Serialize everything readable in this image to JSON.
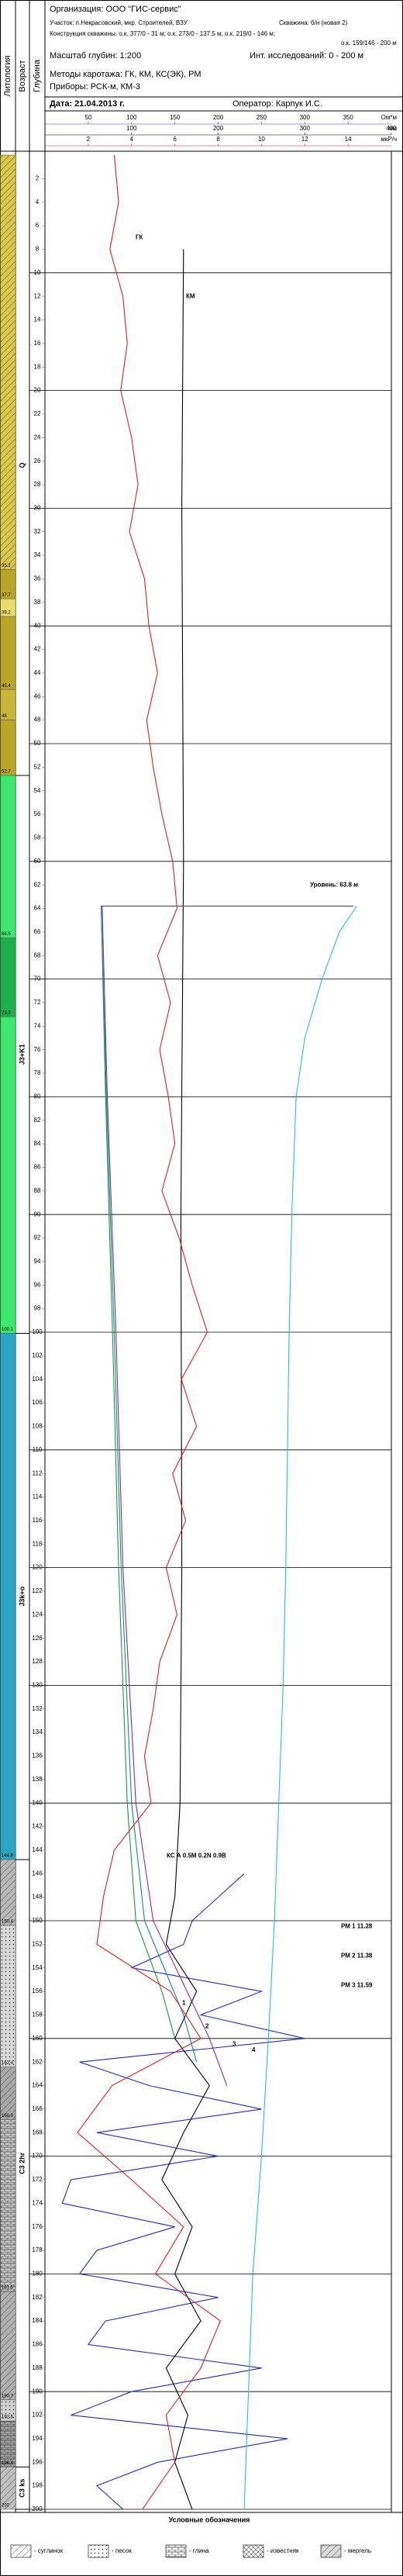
{
  "header": {
    "organization": "Организация: ООО \"ГИС-сервис\"",
    "area": "Участок: п.Некрасовский, мкр. Строителей, ВЗУ",
    "well": "Скважина: б/н (новая 2)",
    "construction": [
      "Конструкция скважины: о.к. 377/0 - 31 м; о.к. 273/0 - 137.5 м; о.к. 219/0 - 146 м;",
      "о.к. 159/146 - 200 м"
    ],
    "scale": "Масштаб глубин: 1:200",
    "interval": "Инт. исследований: 0 - 200 м",
    "methods": "Методы каротажа: ГК, КМ, КС(ЭК), РМ",
    "devices": "Приборы: РСК-м, КМ-3",
    "date": "Дата: 21.04.2013 г.",
    "operator": "Оператор: Карпук И.С.",
    "columns": [
      "Литология",
      "Возраст",
      "Глубина"
    ]
  },
  "chart_data": {
    "type": "well-log",
    "ylim": [
      0,
      200
    ],
    "yticks": [
      2,
      4,
      6,
      8,
      10,
      12,
      14,
      16,
      18,
      20,
      22,
      24,
      26,
      28,
      30,
      32,
      34,
      36,
      38,
      40,
      42,
      44,
      46,
      48,
      50,
      52,
      54,
      56,
      58,
      60,
      62,
      64,
      66,
      68,
      70,
      72,
      74,
      76,
      78,
      80,
      82,
      84,
      86,
      88,
      90,
      92,
      94,
      96,
      98,
      100,
      102,
      104,
      106,
      108,
      110,
      112,
      114,
      116,
      118,
      120,
      122,
      124,
      126,
      128,
      130,
      132,
      134,
      136,
      138,
      140,
      142,
      144,
      146,
      148,
      150,
      152,
      154,
      156,
      158,
      160,
      162,
      164,
      166,
      168,
      170,
      172,
      174,
      176,
      178,
      180,
      182,
      184,
      186,
      188,
      190,
      192,
      194,
      196,
      198,
      200
    ],
    "level_depth": 63.8,
    "scales": [
      {
        "color": "#2a3fd6",
        "unit": "Ом*м",
        "xlim": [
          0,
          400
        ],
        "ticks": [
          50,
          100,
          150,
          200,
          250,
          300,
          350
        ],
        "curves": [
          {
            "color": "#1f2bc0",
            "depth": [
              146,
              148,
              150,
              152,
              154,
              156,
              158,
              160,
              162,
              164,
              166,
              168,
              170,
              172,
              174,
              176,
              178,
              180,
              182,
              184,
              186,
              188,
              190,
              192,
              194,
              196,
              198,
              200
            ],
            "values": [
              230,
              200,
              170,
              160,
              100,
              250,
              180,
              300,
              40,
              120,
              250,
              60,
              200,
              30,
              20,
              150,
              60,
              40,
              200,
              70,
              50,
              250,
              100,
              30,
              280,
              130,
              60,
              90
            ]
          },
          {
            "color": "#22c0d8",
            "depth": [
              63.8,
              66,
              70,
              75,
              80,
              90,
              100,
              110,
              120,
              130,
              140,
              150,
              160,
              170,
              180,
              190,
              200
            ],
            "values": [
              360,
              340,
              320,
              300,
              290,
              285,
              282,
              280,
              278,
              275,
              270,
              265,
              258,
              250,
              240,
              235,
              230
            ]
          },
          {
            "color": "#1a9a3a",
            "depth": [
              63.8,
              80,
              100,
              120,
              140,
              150,
              156,
              160
            ],
            "values": [
              65,
              70,
              78,
              85,
              95,
              105,
              135,
              150
            ]
          },
          {
            "color": "#128c8c",
            "depth": [
              63.8,
              80,
              100,
              120,
              140,
              150,
              158,
              162
            ],
            "values": [
              65,
              71,
              80,
              88,
              100,
              115,
              160,
              175
            ]
          },
          {
            "color": "#8a2aa8",
            "depth": [
              63.8,
              80,
              100,
              120,
              140,
              150,
              160,
              164
            ],
            "values": [
              66,
              72,
              82,
              90,
              105,
              125,
              190,
              210
            ]
          }
        ]
      },
      {
        "color": "#000000",
        "unit": "мм",
        "xlim": [
          0,
          400
        ],
        "ticks": [
          100,
          200,
          300,
          400
        ],
        "curves": [
          {
            "color": "#000000",
            "depth": [
              8,
              30,
              60,
              90,
              120,
              140,
              148,
              152,
              156,
              160,
              164,
              168,
              172,
              176,
              180,
              184,
              188,
              192,
              196,
              200
            ],
            "values": [
              160,
              158,
              160,
              157,
              158,
              156,
              150,
              140,
              175,
              150,
              190,
              160,
              135,
              170,
              150,
              180,
              140,
              165,
              150,
              170
            ]
          }
        ]
      },
      {
        "color": "#e02020",
        "unit": "мкР/ч",
        "xlim": [
          0,
          16
        ],
        "ticks": [
          2,
          4,
          6,
          8,
          10,
          12,
          14
        ],
        "curves": [
          {
            "color": "#e02020",
            "depth": [
              0,
              4,
              8,
              12,
              16,
              20,
              24,
              28,
              32,
              36,
              40,
              44,
              48,
              52,
              56,
              60,
              64,
              68,
              72,
              76,
              80,
              84,
              88,
              92,
              96,
              100,
              104,
              108,
              112,
              116,
              120,
              124,
              128,
              132,
              136,
              140,
              144,
              148,
              152,
              156,
              160,
              164,
              168,
              172,
              176,
              180,
              184,
              188,
              192,
              196,
              200
            ],
            "values": [
              3.2,
              3.4,
              3.0,
              3.6,
              3.8,
              3.5,
              4.0,
              4.3,
              3.9,
              4.6,
              4.8,
              5.2,
              4.7,
              5.0,
              5.4,
              5.9,
              6.1,
              5.2,
              5.8,
              5.3,
              5.7,
              6.0,
              5.4,
              6.2,
              6.8,
              7.5,
              6.3,
              7.0,
              5.9,
              6.5,
              5.6,
              6.1,
              5.3,
              5.0,
              4.6,
              4.9,
              3.2,
              2.7,
              2.4,
              5.8,
              7.2,
              3.1,
              1.5,
              4.0,
              6.4,
              5.1,
              8.1,
              7.2,
              5.6,
              6.0,
              4.5
            ]
          }
        ]
      }
    ],
    "layers": [
      {
        "bottom": 35.2,
        "color": "#d9c84a",
        "pattern": "hatch"
      },
      {
        "bottom": 37.7,
        "color": "#b9a626",
        "pattern": "none"
      },
      {
        "bottom": 39.2,
        "color": "#e8dc6a",
        "pattern": "none"
      },
      {
        "bottom": 45.4,
        "color": "#b9a626",
        "pattern": "none"
      },
      {
        "bottom": 48,
        "color": "#c8b638",
        "pattern": "none"
      },
      {
        "bottom": 52.7,
        "color": "#b9a626",
        "pattern": "none"
      },
      {
        "bottom": 66.5,
        "color": "#3de86a",
        "pattern": "none"
      },
      {
        "bottom": 73.2,
        "color": "#1fb04a",
        "pattern": "none"
      },
      {
        "bottom": 100.1,
        "color": "#3de86a",
        "pattern": "none"
      },
      {
        "bottom": 144.8,
        "color": "#2aa6c2",
        "pattern": "none"
      },
      {
        "bottom": 150.4,
        "color": "#b8b8b8",
        "pattern": "hatch"
      },
      {
        "bottom": 162.4,
        "color": "#d8d8d8",
        "pattern": "dots"
      },
      {
        "bottom": 166.9,
        "color": "#a8a8a8",
        "pattern": "hatch"
      },
      {
        "bottom": 181.5,
        "color": "#c8c8c8",
        "pattern": "brick"
      },
      {
        "bottom": 190.7,
        "color": "#b0b0b0",
        "pattern": "hatch"
      },
      {
        "bottom": 192.5,
        "color": "#d0d0d0",
        "pattern": "dots"
      },
      {
        "bottom": 196.4,
        "color": "#a0a0a0",
        "pattern": "brick"
      },
      {
        "bottom": 200,
        "color": "#c0c0c0",
        "pattern": "hatch"
      }
    ],
    "ages": [
      {
        "label": "Q",
        "from": 0,
        "to": 52.7
      },
      {
        "label": "J3+K1",
        "from": 52.7,
        "to": 100.1
      },
      {
        "label": "J3k+o",
        "from": 100.1,
        "to": 144.8
      },
      {
        "label": "C3 2hr",
        "from": 144.8,
        "to": 196.4
      },
      {
        "label": "C3 ks",
        "from": 196.4,
        "to": 200
      }
    ],
    "annotations": [
      {
        "text": "ГК",
        "color": "#e02020"
      },
      {
        "text": "КМ",
        "color": "#000000"
      },
      {
        "text": "Уровень: 63.8 м",
        "color": "#22b0d0"
      },
      {
        "text": "КС А 0.5М 0.2N 0.9В",
        "color": "#1f2bc0"
      },
      {
        "text": "РМ 1 11.28",
        "color": "#1a9a3a"
      },
      {
        "text": "РМ 2 11.38",
        "color": "#128c8c"
      },
      {
        "text": "РМ 3 11.59",
        "color": "#8a2aa8"
      },
      {
        "text": "1",
        "color": "#1a9a3a"
      },
      {
        "text": "2",
        "color": "#128c8c"
      },
      {
        "text": "3",
        "color": "#8a2aa8"
      },
      {
        "text": "4",
        "color": "#22c0d8"
      }
    ],
    "legend": {
      "title": "Условные обозначения",
      "items": [
        "- суглинок",
        "- песок",
        "- глина",
        "- известняк",
        "- мергель"
      ]
    }
  }
}
